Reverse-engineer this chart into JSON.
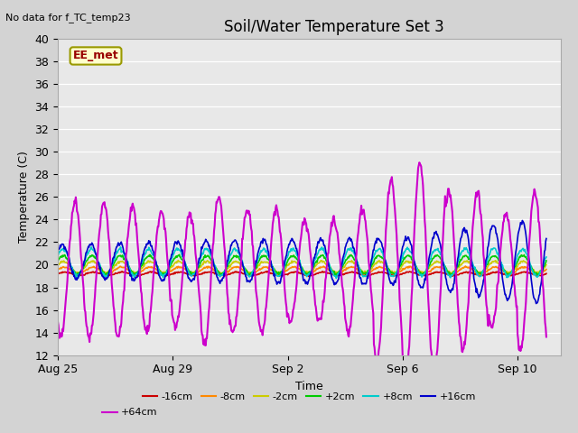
{
  "title": "Soil/Water Temperature Set 3",
  "xlabel": "Time",
  "ylabel": "Temperature (C)",
  "ylim": [
    12,
    40
  ],
  "yticks": [
    12,
    14,
    16,
    18,
    20,
    22,
    24,
    26,
    28,
    30,
    32,
    34,
    36,
    38,
    40
  ],
  "no_data_text": "No data for f_TC_temp23",
  "legend_box_label": "EE_met",
  "fig_facecolor": "#d3d3d3",
  "ax_facecolor": "#e8e8e8",
  "grid_color": "#ffffff",
  "series": [
    {
      "label": "-16cm",
      "color": "#cc0000"
    },
    {
      "label": "-8cm",
      "color": "#ff8800"
    },
    {
      "label": "-2cm",
      "color": "#cccc00"
    },
    {
      "label": "+2cm",
      "color": "#00cc00"
    },
    {
      "label": "+8cm",
      "color": "#00cccc"
    },
    {
      "label": "+16cm",
      "color": "#0000cc"
    },
    {
      "label": "+64cm",
      "color": "#cc00cc"
    }
  ],
  "xtick_labels": [
    "Aug 25",
    "Aug 29",
    "Sep 2",
    "Sep 6",
    "Sep 10"
  ],
  "xtick_days": [
    0,
    4,
    8,
    12,
    16
  ],
  "xlim": [
    0,
    17.5
  ],
  "title_fontsize": 12,
  "axis_label_fontsize": 9,
  "tick_fontsize": 9
}
